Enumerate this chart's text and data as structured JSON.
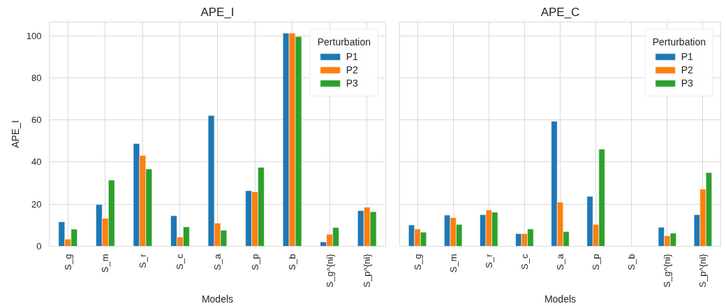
{
  "chart_data": [
    {
      "type": "bar",
      "title": "APE_I",
      "xlabel": "Models",
      "ylabel": "APE_I",
      "legend_title": "Perturbation",
      "legend": "top right",
      "grid": true,
      "categories": [
        "S_g",
        "S_m",
        "S_r",
        "S_c",
        "S_a",
        "S_p",
        "S_b",
        "S_g^{ni}",
        "S_p^{ni}"
      ],
      "ylim": [
        0,
        106.5
      ],
      "yticks": [
        0,
        20,
        40,
        60,
        80,
        100
      ],
      "series": [
        {
          "name": "P1",
          "color": "#1f77b4",
          "values": [
            11.6,
            19.8,
            48.8,
            14.5,
            62.1,
            26.4,
            101.2,
            2.1,
            16.9
          ]
        },
        {
          "name": "P2",
          "color": "#ff7f0e",
          "values": [
            3.4,
            13.3,
            43.1,
            4.4,
            11.0,
            25.9,
            101.2,
            5.7,
            18.6
          ]
        },
        {
          "name": "P3",
          "color": "#2ca02c",
          "values": [
            8.1,
            31.4,
            36.7,
            9.2,
            7.6,
            37.5,
            99.6,
            8.9,
            16.4
          ]
        }
      ]
    },
    {
      "type": "bar",
      "title": "APE_C",
      "xlabel": "Models",
      "legend_title": "Perturbation",
      "legend": "top right",
      "grid": true,
      "tick_labels": "x",
      "categories": [
        "S_g",
        "S_m",
        "S_r",
        "S_c",
        "S_a",
        "S_p",
        "S_b",
        "S_g^{ni}",
        "S_p^{ni}"
      ],
      "ylim": [
        0,
        106.5
      ],
      "yticks": [
        0,
        20,
        40,
        60,
        80,
        100
      ],
      "series": [
        {
          "name": "P1",
          "color": "#1f77b4",
          "values": [
            10.1,
            14.8,
            15.0,
            6.0,
            59.4,
            23.7,
            null,
            9.0,
            15.0
          ]
        },
        {
          "name": "P2",
          "color": "#ff7f0e",
          "values": [
            8.2,
            13.6,
            17.2,
            6.0,
            21.0,
            10.4,
            null,
            5.0,
            27.1
          ]
        },
        {
          "name": "P3",
          "color": "#2ca02c",
          "values": [
            6.7,
            10.4,
            16.2,
            8.2,
            7.0,
            46.1,
            null,
            6.2,
            35.0
          ]
        }
      ]
    }
  ]
}
